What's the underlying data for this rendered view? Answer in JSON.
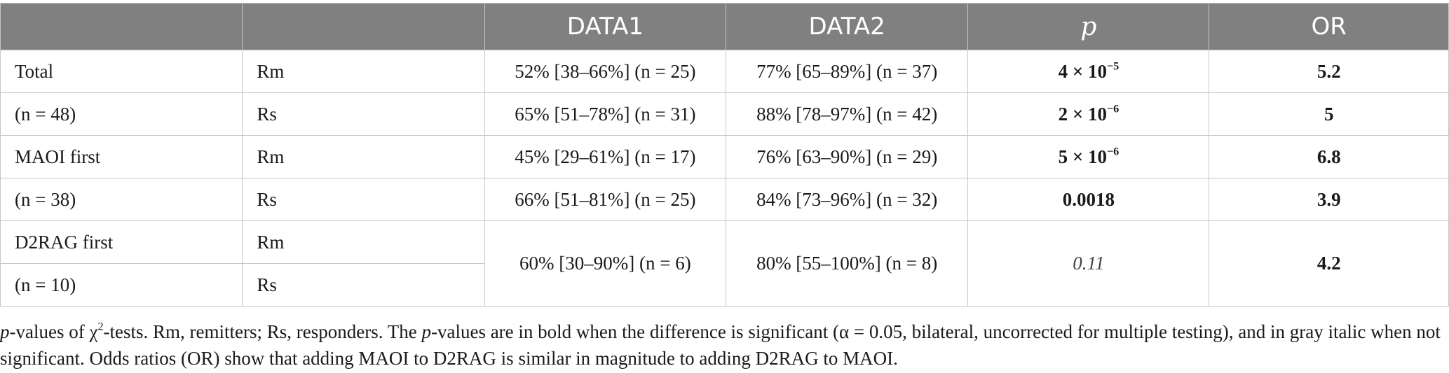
{
  "header": {
    "col1": "",
    "col2": "",
    "data1": "DATA1",
    "data2": "DATA2",
    "p": "p",
    "or": "OR"
  },
  "rows": [
    {
      "label": "Total",
      "type": "Rm",
      "data1": "52% [38–66%] (n = 25)",
      "data2": "77% [65–89%] (n = 37)",
      "p_base": "4 × 10",
      "p_exp": "−5",
      "or": "5.2"
    },
    {
      "label": "(n = 48)",
      "type": "Rs",
      "data1": "65% [51–78%] (n = 31)",
      "data2": "88% [78–97%] (n = 42)",
      "p_base": "2 × 10",
      "p_exp": "−6",
      "or": "5"
    },
    {
      "label": "MAOI first",
      "type": "Rm",
      "data1": "45% [29–61%] (n = 17)",
      "data2": "76% [63–90%] (n = 29)",
      "p_base": "5 × 10",
      "p_exp": "−6",
      "or": "6.8"
    },
    {
      "label": "(n = 38)",
      "type": "Rs",
      "data1": "66% [51–81%] (n = 25)",
      "data2": "84% [73–96%] (n = 32)",
      "p": "0.0018",
      "or": "3.9"
    },
    {
      "label": "D2RAG first",
      "type": "Rm"
    },
    {
      "label": "(n = 10)",
      "type": "Rs"
    }
  ],
  "merged": {
    "data1": "60% [30–90%] (n = 6)",
    "data2": "80% [55–100%] (n = 8)",
    "p": "0.11",
    "or": "4.2"
  },
  "caption": {
    "part1": "p",
    "part2": "-values of χ",
    "sup": "2",
    "part3": "-tests. Rm, remitters; Rs, responders. The ",
    "part4": "p",
    "part5": "-values are in bold when the difference is significant (α = 0.05, bilateral, uncorrected for multiple testing), and in gray italic when not significant. Odds ratios (OR) show that adding MAOI to D2RAG is similar in magnitude to adding D2RAG to MAOI."
  }
}
